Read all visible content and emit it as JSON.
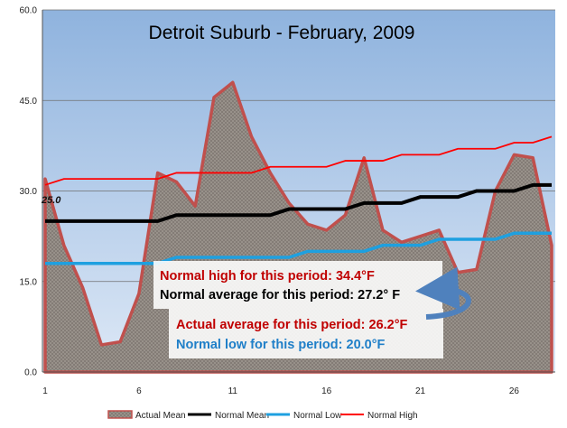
{
  "chart_data": {
    "type": "area",
    "title": "Detroit Suburb  - February, 2009",
    "xlabel": "",
    "ylabel": "",
    "x_tick_labels": [
      "1",
      "6",
      "11",
      "16",
      "21",
      "26"
    ],
    "x_ticks": [
      1,
      6,
      11,
      16,
      21,
      26
    ],
    "xlim": [
      1,
      28
    ],
    "ylim": [
      0,
      60
    ],
    "y_tick_labels": [
      "0.0",
      "15.0",
      "30.0",
      "45.0",
      "60.0"
    ],
    "y_ticks": [
      0,
      15,
      30,
      45,
      60
    ],
    "grid": "horizontal",
    "legend_position": "bottom",
    "x": [
      1,
      2,
      3,
      4,
      5,
      6,
      7,
      8,
      9,
      10,
      11,
      12,
      13,
      14,
      15,
      16,
      17,
      18,
      19,
      20,
      21,
      22,
      23,
      24,
      25,
      26,
      27,
      28
    ],
    "series": [
      {
        "name": "Actual Mean",
        "style": "area",
        "color": "#c0504d",
        "values": [
          32,
          21,
          14,
          4.5,
          5,
          13,
          33,
          31.5,
          27.5,
          45.5,
          48,
          39,
          33,
          28,
          24.5,
          23.5,
          26,
          35.5,
          23.5,
          21.5,
          22.5,
          23.5,
          16.5,
          17,
          30,
          36,
          35.5,
          21
        ]
      },
      {
        "name": "Normal Mean",
        "style": "line",
        "color": "#000000",
        "values": [
          25,
          25,
          25,
          25,
          25,
          25,
          25,
          26,
          26,
          26,
          26,
          26,
          26,
          27,
          27,
          27,
          27,
          28,
          28,
          28,
          29,
          29,
          29,
          30,
          30,
          30,
          31,
          31
        ]
      },
      {
        "name": "Normal Low",
        "style": "line",
        "color": "#1ea0e0",
        "values": [
          18,
          18,
          18,
          18,
          18,
          18,
          18,
          19,
          19,
          19,
          19,
          19,
          19,
          19,
          20,
          20,
          20,
          20,
          21,
          21,
          21,
          22,
          22,
          22,
          22,
          23,
          23,
          23
        ]
      },
      {
        "name": "Normal High",
        "style": "line",
        "color": "#ff0000",
        "values": [
          31,
          32,
          32,
          32,
          32,
          32,
          32,
          33,
          33,
          33,
          33,
          33,
          34,
          34,
          34,
          34,
          35,
          35,
          35,
          36,
          36,
          36,
          37,
          37,
          37,
          38,
          38,
          39
        ]
      }
    ],
    "data_labels": [
      {
        "text": "25.0",
        "x": 1,
        "y": 25
      }
    ],
    "annotations": {
      "normal_high": "Normal high for this period: 34.4°F",
      "normal_average": "Normal average for this period: 27.2° F",
      "actual_average": "Actual average for this period:  26.2°F",
      "normal_low": "Normal low for this period: 20.0°F"
    },
    "annotation_colors": {
      "normal_high": "#c00000",
      "normal_average": "#000000",
      "actual_average": "#c00000",
      "normal_low": "#1f7fc8"
    }
  }
}
